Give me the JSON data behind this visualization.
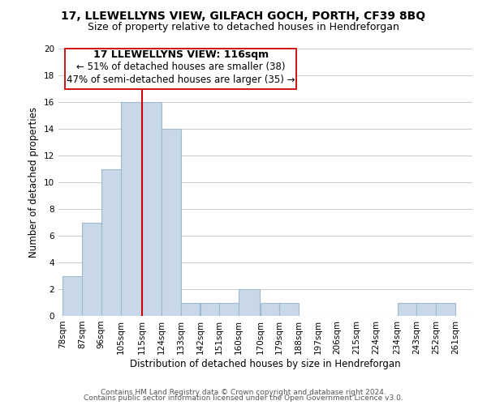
{
  "title": "17, LLEWELLYNS VIEW, GILFACH GOCH, PORTH, CF39 8BQ",
  "subtitle": "Size of property relative to detached houses in Hendreforgan",
  "xlabel": "Distribution of detached houses by size in Hendreforgan",
  "ylabel": "Number of detached properties",
  "bins": [
    78,
    87,
    96,
    105,
    115,
    124,
    133,
    142,
    151,
    160,
    170,
    179,
    188,
    197,
    206,
    215,
    224,
    234,
    243,
    252,
    261
  ],
  "bin_labels": [
    "78sqm",
    "87sqm",
    "96sqm",
    "105sqm",
    "115sqm",
    "124sqm",
    "133sqm",
    "142sqm",
    "151sqm",
    "160sqm",
    "170sqm",
    "179sqm",
    "188sqm",
    "197sqm",
    "206sqm",
    "215sqm",
    "224sqm",
    "234sqm",
    "243sqm",
    "252sqm",
    "261sqm"
  ],
  "counts": [
    3,
    7,
    11,
    16,
    16,
    14,
    1,
    1,
    1,
    2,
    1,
    1,
    0,
    0,
    0,
    0,
    0,
    1,
    1,
    1,
    0
  ],
  "bar_color": "#c8d8e8",
  "bar_edgecolor": "#a0b8ce",
  "reference_line_x": 115,
  "reference_line_color": "#cc0000",
  "ylim": [
    0,
    20
  ],
  "yticks": [
    0,
    2,
    4,
    6,
    8,
    10,
    12,
    14,
    16,
    18,
    20
  ],
  "annotation_title": "17 LLEWELLYNS VIEW: 116sqm",
  "annotation_line1": "← 51% of detached houses are smaller (38)",
  "annotation_line2": "47% of semi-detached houses are larger (35) →",
  "annotation_box_color": "#ffffff",
  "annotation_box_edgecolor": "#cc0000",
  "footer_line1": "Contains HM Land Registry data © Crown copyright and database right 2024.",
  "footer_line2": "Contains public sector information licensed under the Open Government Licence v3.0.",
  "title_fontsize": 10,
  "subtitle_fontsize": 9,
  "axis_label_fontsize": 8.5,
  "tick_fontsize": 7.5,
  "annotation_title_fontsize": 9,
  "annotation_fontsize": 8.5,
  "footer_fontsize": 6.5
}
